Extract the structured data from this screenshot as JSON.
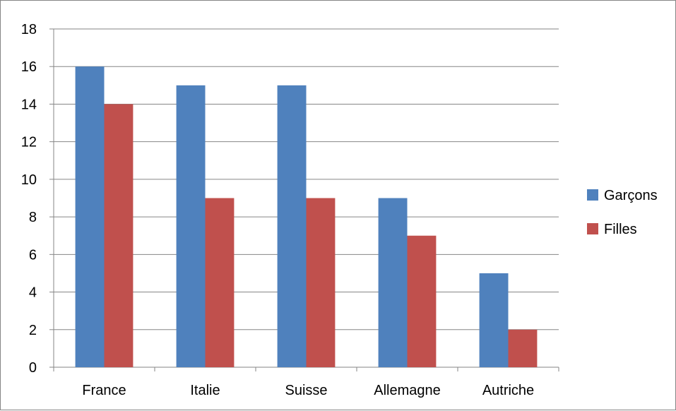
{
  "chart_data": {
    "type": "bar",
    "title": "",
    "xlabel": "",
    "ylabel": "",
    "categories": [
      "France",
      "Italie",
      "Suisse",
      "Allemagne",
      "Autriche"
    ],
    "series": [
      {
        "name": "Garçons",
        "color": "#4F81BD",
        "values": [
          16,
          15,
          15,
          9,
          5
        ]
      },
      {
        "name": "Filles",
        "color": "#C0504D",
        "values": [
          14,
          9,
          9,
          7,
          2
        ]
      }
    ],
    "ylim": [
      0,
      18
    ],
    "yticks": [
      0,
      2,
      4,
      6,
      8,
      10,
      12,
      14,
      16,
      18
    ],
    "grid": true,
    "legend_position": "right"
  }
}
